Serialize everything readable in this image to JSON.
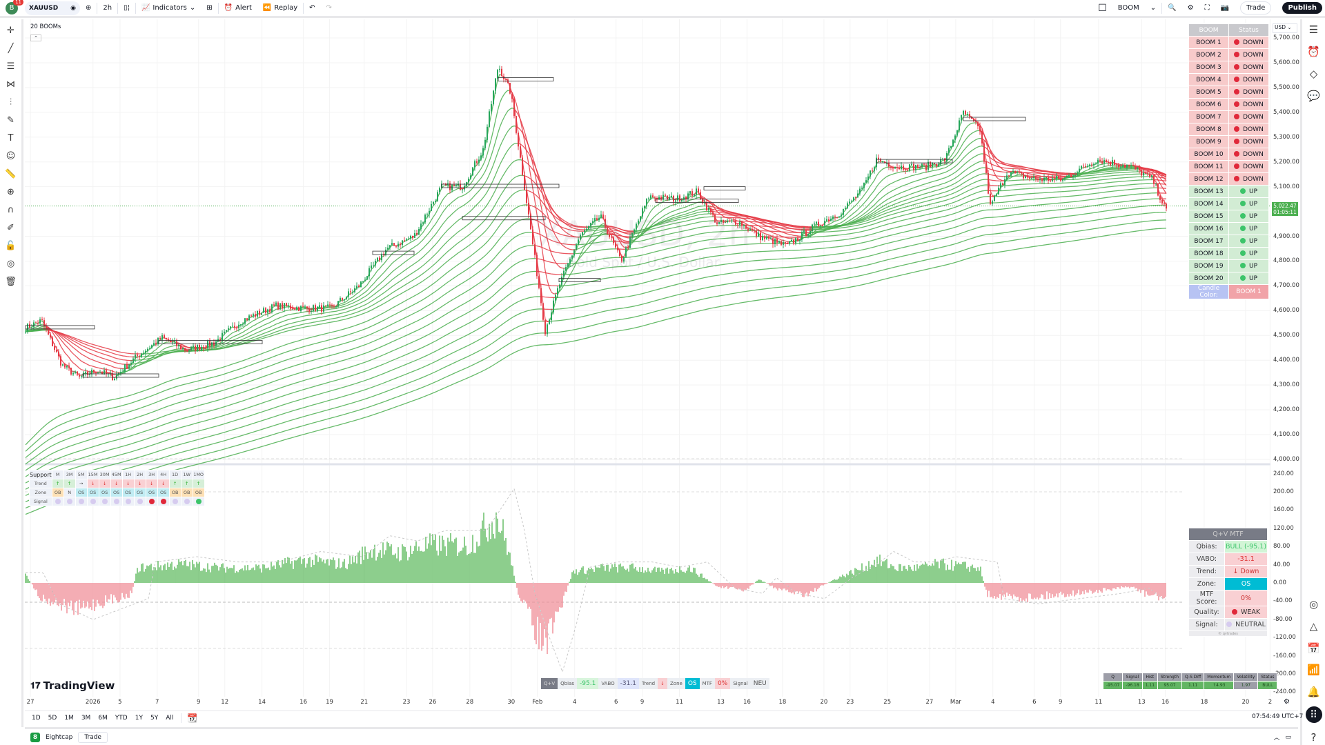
{
  "topbar": {
    "avatar_letter": "B",
    "notif_count": "11",
    "symbol": "XAUUSD",
    "interval": "2h",
    "indicators": "Indicators",
    "alert": "Alert",
    "replay": "Replay",
    "layout_name": "BOOM",
    "trade": "Trade",
    "publish": "Publish"
  },
  "chart": {
    "indicator_legend": "20 BOOMs",
    "watermark_title": "XAUUSD, 2h",
    "watermark_subtitle": "Gold Spot / U.S. Dollar",
    "currency": "USD",
    "last_price": "5,022.47",
    "countdown": "01:05:11",
    "accent_up": "#4caf50",
    "accent_down": "#e53945"
  },
  "price_axis": [
    "5,700.00",
    "5,600.00",
    "5,500.00",
    "5,400.00",
    "5,300.00",
    "5,200.00",
    "5,100.00",
    "4,900.00",
    "4,800.00",
    "4,700.00",
    "4,600.00",
    "4,500.00",
    "4,400.00",
    "4,300.00",
    "4,200.00",
    "4,100.00",
    "4,000.00"
  ],
  "osc_axis": [
    "240.00",
    "200.00",
    "160.00",
    "120.00",
    "80.00",
    "40.00",
    "0.00",
    "-40.00",
    "-80.00",
    "-120.00",
    "-160.00",
    "-200.00",
    "-240.00"
  ],
  "time_axis": [
    "27",
    "2026",
    "5",
    "7",
    "9",
    "12",
    "14",
    "16",
    "19",
    "21",
    "23",
    "26",
    "28",
    "30",
    "Feb",
    "4",
    "6",
    "9",
    "11",
    "13",
    "16",
    "18",
    "20",
    "23",
    "25",
    "27",
    "Mar",
    "4",
    "6",
    "9",
    "11",
    "13",
    "16",
    "18",
    "20",
    "2"
  ],
  "boom_table": {
    "headers": [
      "BOOM",
      "Status"
    ],
    "rows": [
      [
        "BOOM 1",
        "DOWN"
      ],
      [
        "BOOM 2",
        "DOWN"
      ],
      [
        "BOOM 3",
        "DOWN"
      ],
      [
        "BOOM 4",
        "DOWN"
      ],
      [
        "BOOM 5",
        "DOWN"
      ],
      [
        "BOOM 6",
        "DOWN"
      ],
      [
        "BOOM 7",
        "DOWN"
      ],
      [
        "BOOM 8",
        "DOWN"
      ],
      [
        "BOOM 9",
        "DOWN"
      ],
      [
        "BOOM 10",
        "DOWN"
      ],
      [
        "BOOM 11",
        "DOWN"
      ],
      [
        "BOOM 12",
        "DOWN"
      ],
      [
        "BOOM 13",
        "UP"
      ],
      [
        "BOOM 14",
        "UP"
      ],
      [
        "BOOM 15",
        "UP"
      ],
      [
        "BOOM 16",
        "UP"
      ],
      [
        "BOOM 17",
        "UP"
      ],
      [
        "BOOM 18",
        "UP"
      ],
      [
        "BOOM 19",
        "UP"
      ],
      [
        "BOOM 20",
        "UP"
      ]
    ],
    "candle_color_label": "Candle Color:",
    "candle_color_value": "BOOM 1"
  },
  "support_table": {
    "title": "Support",
    "timeframes": [
      "M",
      "3M",
      "5M",
      "15M",
      "30M",
      "45M",
      "1H",
      "2H",
      "3H",
      "4H",
      "1D",
      "1W",
      "1MO"
    ],
    "trend_label": "Trend",
    "trend": [
      "↑",
      "↑",
      "→",
      "↓",
      "↓",
      "↓",
      "↓",
      "↓",
      "↓",
      "↓",
      "↑",
      "↑",
      "↑"
    ],
    "zone_label": "Zone",
    "zone": [
      "OB",
      "N",
      "OS",
      "OS",
      "OS",
      "OS",
      "OS",
      "OS",
      "OS",
      "OS",
      "OB",
      "OB",
      "OB"
    ],
    "signal_label": "Signal",
    "signal": [
      "neutral",
      "neutral",
      "neutral",
      "neutral",
      "neutral",
      "neutral",
      "neutral",
      "neutral",
      "bear",
      "bear",
      "neutral",
      "neutral",
      "bull"
    ]
  },
  "qv_mtf": {
    "title": "Q+V MTF",
    "rows": [
      [
        "Qbias:",
        "BULL (-95.1)"
      ],
      [
        "VABO:",
        "-31.1"
      ],
      [
        "Trend:",
        "↓ Down"
      ],
      [
        "Zone:",
        "OS"
      ],
      [
        "MTF Score:",
        "0%"
      ],
      [
        "Quality:",
        "WEAK"
      ],
      [
        "Signal:",
        "NEUTRAL"
      ]
    ],
    "footer": "© qvtrades"
  },
  "status_bar": [
    "Q+V",
    "Qbias",
    "-95.1",
    "VABO",
    "-31.1",
    "Trend",
    "↓",
    "Zone",
    "OS",
    "MTF",
    "0%",
    "Signal",
    "NEU"
  ],
  "stats_table": {
    "headers": [
      "Q",
      "Signal",
      "Hist",
      "Strength",
      "Q-S Diff",
      "Momentum",
      "Volatility",
      "Status"
    ],
    "values": [
      "-95.07",
      "-96.18",
      "1.11",
      "95.07",
      "1.11",
      "↑4.93",
      "1.97",
      "BULL"
    ]
  },
  "branding": "TradingView",
  "ranges": [
    "1D",
    "5D",
    "1M",
    "3M",
    "6M",
    "YTD",
    "1Y",
    "5Y",
    "All"
  ],
  "clock": "07:54:49 UTC+7",
  "footer": {
    "broker": "Eightcap",
    "trade": "Trade"
  }
}
